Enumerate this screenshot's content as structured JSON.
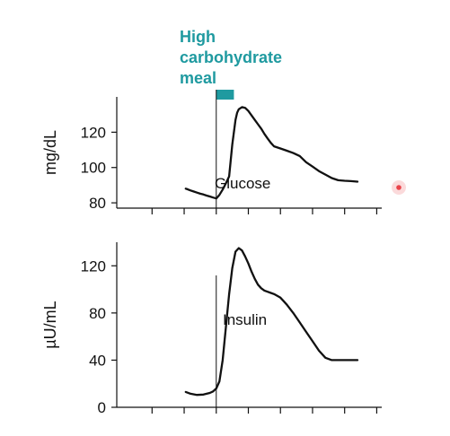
{
  "chart_data": [
    {
      "type": "line",
      "ylabel": "mg/dL",
      "yticks": [
        80,
        100,
        120
      ],
      "ylim": [
        77,
        140
      ],
      "xlim": [
        -3.1,
        5.1
      ],
      "x_ticks": [
        -2,
        -1,
        0,
        1,
        2,
        3,
        4,
        5
      ],
      "annotation_label": "Glucose",
      "meal_marker_x": 0,
      "meal_bar": [
        0,
        0.55
      ],
      "meal_label_lines": [
        "High",
        "carbohydrate",
        "meal"
      ],
      "series": [
        {
          "x": [
            -0.95,
            -0.9,
            -0.8,
            -0.7,
            -0.6,
            -0.5,
            -0.4,
            -0.3,
            -0.2,
            -0.1,
            0.0,
            0.1,
            0.2,
            0.3,
            0.4,
            0.5,
            0.6,
            0.65,
            0.7,
            0.8,
            0.9,
            1.0,
            1.1,
            1.2,
            1.3,
            1.4,
            1.5,
            1.6,
            1.7,
            1.8,
            2.0,
            2.2,
            2.4,
            2.6,
            2.8,
            3.0,
            3.2,
            3.4,
            3.6,
            3.8,
            4.0,
            4.2,
            4.4
          ],
          "values": [
            88.0,
            87.7,
            87.0,
            86.4,
            85.8,
            85.2,
            84.7,
            84.1,
            83.6,
            83.0,
            82.5,
            84.5,
            87.5,
            91,
            95,
            113,
            127,
            131,
            133,
            134.2,
            133.8,
            132,
            129.5,
            127,
            124.5,
            122,
            119,
            116.5,
            114,
            112,
            110.8,
            109.5,
            108.2,
            106.5,
            103,
            100.5,
            98,
            96,
            94,
            92.8,
            92.5,
            92.3,
            92.0
          ]
        }
      ]
    },
    {
      "type": "line",
      "ylabel": "µU/mL",
      "yticks": [
        0,
        40,
        80,
        120
      ],
      "ylim": [
        0,
        140
      ],
      "xlim": [
        -3.1,
        5.1
      ],
      "x_ticks": [
        -2,
        -1,
        0,
        1,
        2,
        3,
        4,
        5
      ],
      "annotation_label": "Insulin",
      "meal_marker_x": 0,
      "series": [
        {
          "x": [
            -0.95,
            -0.8,
            -0.6,
            -0.4,
            -0.2,
            -0.1,
            0.0,
            0.1,
            0.2,
            0.3,
            0.4,
            0.5,
            0.6,
            0.7,
            0.8,
            0.9,
            1.0,
            1.1,
            1.2,
            1.3,
            1.4,
            1.5,
            1.6,
            1.7,
            1.8,
            1.9,
            2.0,
            2.1,
            2.2,
            2.4,
            2.6,
            2.8,
            3.0,
            3.2,
            3.4,
            3.6,
            3.8,
            4.0,
            4.2,
            4.4
          ],
          "values": [
            13,
            11.5,
            10.5,
            10.8,
            12.2,
            13.5,
            16,
            22,
            40,
            68,
            96,
            118,
            132,
            135,
            133,
            128,
            122,
            115,
            109,
            104,
            101,
            99,
            98,
            97,
            96,
            94.5,
            93,
            90,
            87,
            80,
            72,
            64,
            56,
            48,
            42,
            40,
            40,
            40,
            40,
            40
          ]
        }
      ]
    }
  ],
  "colors": {
    "accent": "#1f9aa0",
    "line": "#111111",
    "cursor": "#e8323a"
  }
}
